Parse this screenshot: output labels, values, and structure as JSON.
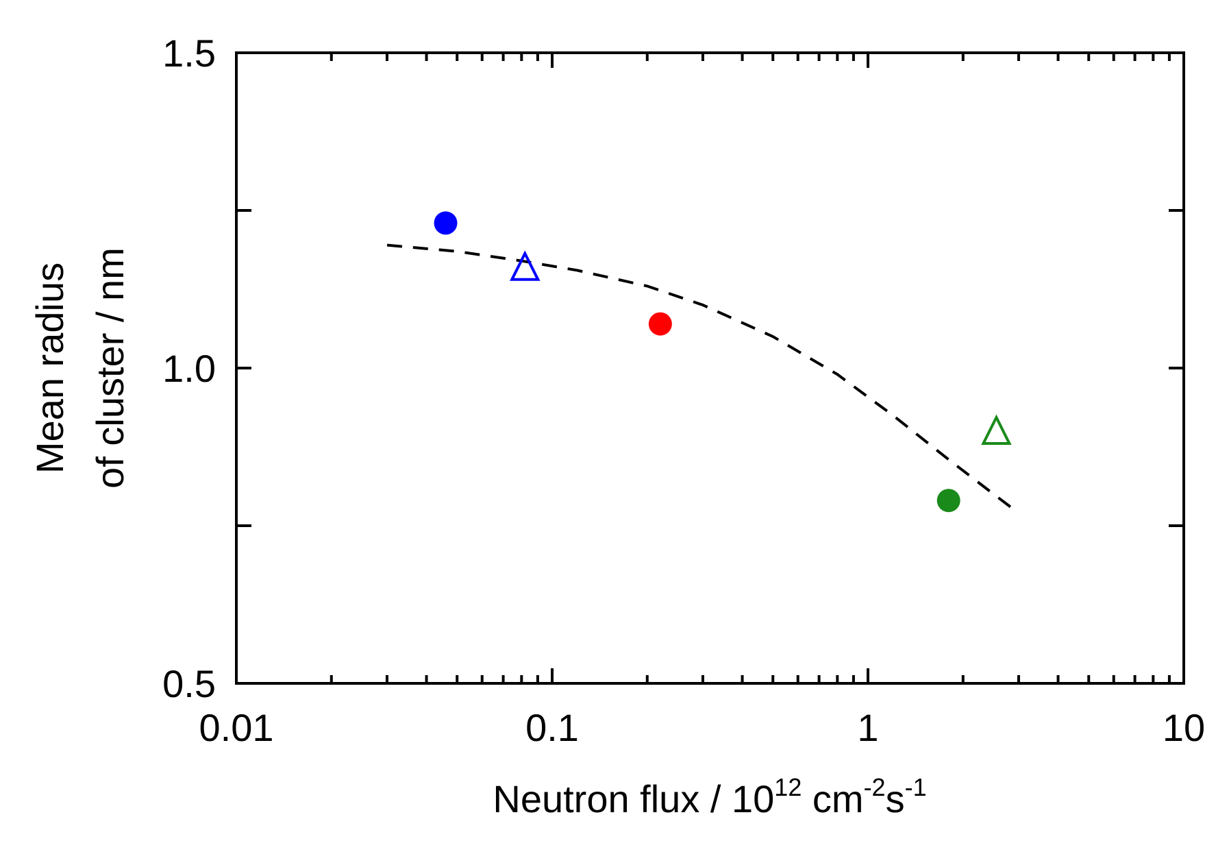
{
  "chart_data": {
    "type": "scatter",
    "title": "",
    "xlabel": "Neutron flux / 10",
    "xlabel_exp1": "12",
    "xlabel_mid": " cm",
    "xlabel_exp2": "-2",
    "xlabel_s": "s",
    "xlabel_exp3": "-1",
    "ylabel_line1": "Mean radius",
    "ylabel_line2": "of cluster / nm",
    "xscale": "log",
    "xlim": [
      0.01,
      10
    ],
    "ylim": [
      0.5,
      1.5
    ],
    "x_ticks": [
      0.01,
      0.1,
      1,
      10
    ],
    "x_tick_labels": [
      "0.01",
      "0.1",
      "1",
      "10"
    ],
    "y_ticks": [
      0.5,
      0.75,
      1.0,
      1.25,
      1.5
    ],
    "y_tick_labels": [
      "0.5",
      "",
      "1.0",
      "",
      "1.5"
    ],
    "series": [
      {
        "name": "blue filled circle",
        "marker": "circle-filled",
        "color": "#0000ff",
        "points": [
          {
            "x": 0.046,
            "y": 1.23
          }
        ]
      },
      {
        "name": "blue open triangle",
        "marker": "triangle-open",
        "color": "#0000ff",
        "points": [
          {
            "x": 0.082,
            "y": 1.16
          }
        ]
      },
      {
        "name": "red filled circle",
        "marker": "circle-filled",
        "color": "#ff0000",
        "points": [
          {
            "x": 0.22,
            "y": 1.07
          }
        ]
      },
      {
        "name": "green filled circle",
        "marker": "circle-filled",
        "color": "#1a8a1a",
        "points": [
          {
            "x": 1.8,
            "y": 0.79
          }
        ]
      },
      {
        "name": "green open triangle",
        "marker": "triangle-open",
        "color": "#1a8a1a",
        "points": [
          {
            "x": 2.55,
            "y": 0.9
          }
        ]
      }
    ],
    "fit_curve": {
      "name": "dashed fit",
      "style": "dashed",
      "color": "#000000",
      "x": [
        0.03,
        0.05,
        0.08,
        0.12,
        0.2,
        0.3,
        0.5,
        0.8,
        1.2,
        1.8,
        2.5,
        3.0
      ],
      "y": [
        1.195,
        1.185,
        1.17,
        1.155,
        1.13,
        1.1,
        1.05,
        0.99,
        0.925,
        0.855,
        0.8,
        0.77
      ]
    },
    "grid": false,
    "legend": "none"
  }
}
